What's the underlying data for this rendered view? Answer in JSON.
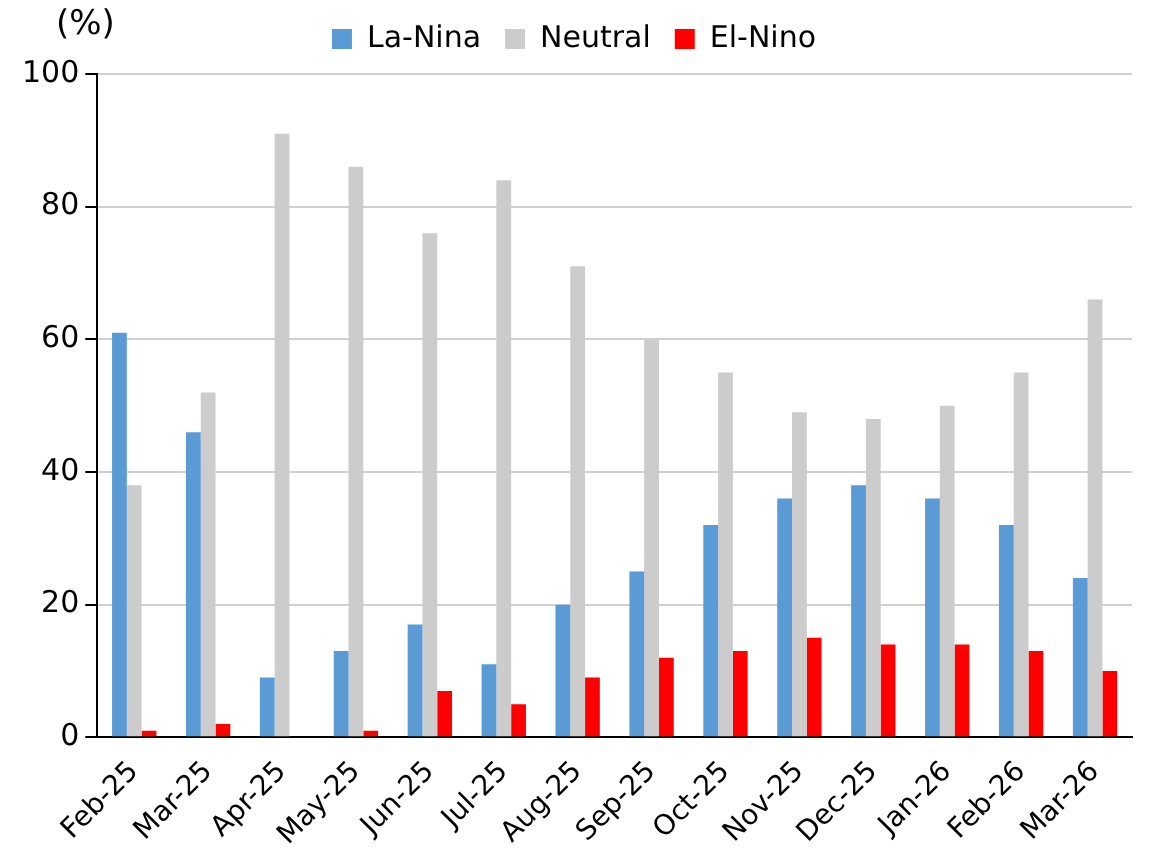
{
  "chart_data": {
    "type": "bar",
    "ylabel": "(%)",
    "categories": [
      "Feb-25",
      "Mar-25",
      "Apr-25",
      "May-25",
      "Jun-25",
      "Jul-25",
      "Aug-25",
      "Sep-25",
      "Oct-25",
      "Nov-25",
      "Dec-25",
      "Jan-26",
      "Feb-26",
      "Mar-26"
    ],
    "series": [
      {
        "name": "La-Nina",
        "color": "#5b9bd5",
        "values": [
          61,
          46,
          9,
          13,
          17,
          11,
          20,
          25,
          32,
          36,
          38,
          36,
          32,
          24
        ]
      },
      {
        "name": "Neutral",
        "color": "#cccccc",
        "values": [
          38,
          52,
          91,
          86,
          76,
          84,
          71,
          60,
          55,
          49,
          48,
          50,
          55,
          66
        ]
      },
      {
        "name": "El-Nino",
        "color": "#ff0000",
        "values": [
          1,
          2,
          0,
          1,
          7,
          5,
          9,
          12,
          13,
          15,
          14,
          14,
          13,
          10
        ]
      }
    ],
    "ylim": [
      0,
      100
    ],
    "yticks": [
      0,
      20,
      40,
      60,
      80,
      100
    ],
    "grid": "y",
    "legend": "top"
  }
}
